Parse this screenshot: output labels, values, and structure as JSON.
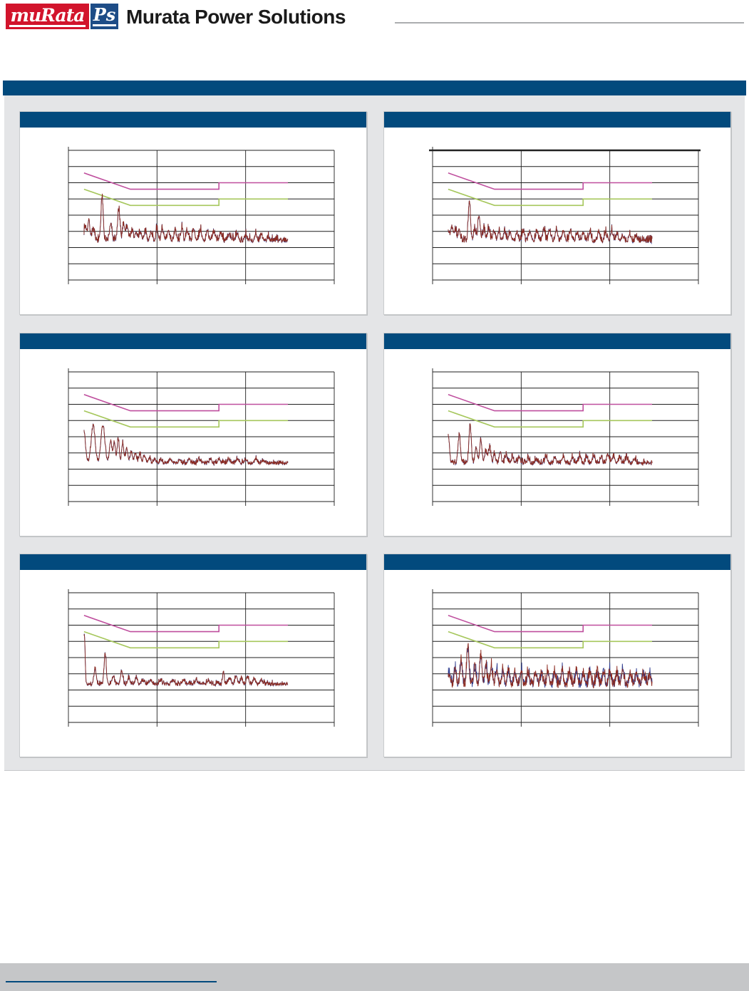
{
  "header": {
    "logo_murata_text": "muRata",
    "logo_ps_text": "Ps",
    "brand_text": "Murata Power Solutions",
    "logo_red_color": "#d2142c",
    "logo_ps_navy_color": "#1e4d87",
    "rule_color": "#abadaf"
  },
  "section": {
    "top_bar_color": "#024a7d",
    "background_color": "#e4e5e7",
    "card_header_color": "#024a7d",
    "footer_band_color": "#c5c6c8",
    "footer_line_color": "#024a7d"
  },
  "chart_data": {
    "type": "line",
    "title": "",
    "shared": {
      "x_axis": {
        "scale": "log",
        "min_mhz": 0.1,
        "max_mhz": 100,
        "gridlines_mhz": [
          0.1,
          1,
          10,
          100
        ]
      },
      "y_axis": {
        "min_db": 0,
        "max_db": 80,
        "grid_step_db": 10
      },
      "grid_color": "#1f1f1f",
      "grid_rows": 8,
      "legend": "none",
      "limits": {
        "quasi_peak": {
          "name": "quasi-peak-limit",
          "color": "#bf4f9e",
          "points_mhz_db": [
            [
              0.15,
              66
            ],
            [
              0.5,
              56
            ],
            [
              5,
              56
            ],
            [
              5,
              60
            ],
            [
              30,
              60
            ]
          ]
        },
        "average": {
          "name": "average-limit",
          "color": "#a6c75c",
          "points_mhz_db": [
            [
              0.15,
              56
            ],
            [
              0.5,
              46
            ],
            [
              5,
              46
            ],
            [
              5,
              50
            ],
            [
              30,
              50
            ]
          ]
        }
      },
      "trace_colors": {
        "qp": "#8c2b21",
        "avg": "#2f3d8f"
      },
      "trace_start_mhz": 0.15,
      "trace_end_mhz": 30
    },
    "charts": [
      {
        "position": "top-left",
        "seed": 7,
        "baseline_db": 24,
        "spike_db": 4.5,
        "jitter_db": 1.1,
        "separation_db": 0.5,
        "separate_traces": false,
        "thick_top_border": false,
        "peaks_mhz_db": [
          [
            0.155,
            33
          ],
          [
            0.17,
            36
          ],
          [
            0.19,
            31
          ],
          [
            0.24,
            50,
            0.013
          ],
          [
            0.3,
            34
          ],
          [
            0.37,
            43
          ],
          [
            0.42,
            34
          ],
          [
            0.46,
            33
          ],
          [
            0.52,
            30
          ],
          [
            0.58,
            29
          ],
          [
            0.65,
            29
          ],
          [
            0.74,
            29
          ],
          [
            0.86,
            29
          ],
          [
            1.0,
            30
          ],
          [
            1.15,
            30
          ],
          [
            1.35,
            30
          ],
          [
            1.6,
            30
          ],
          [
            1.9,
            31
          ],
          [
            2.2,
            30
          ],
          [
            2.6,
            31
          ],
          [
            3.1,
            30
          ],
          [
            3.7,
            30
          ],
          [
            4.4,
            29
          ],
          [
            5.2,
            29
          ],
          [
            6.5,
            28
          ],
          [
            8,
            28
          ],
          [
            10,
            27
          ],
          [
            13,
            28
          ],
          [
            15,
            28
          ],
          [
            18,
            26
          ]
        ]
      },
      {
        "position": "top-right",
        "seed": 13,
        "baseline_db": 24,
        "spike_db": 4,
        "jitter_db": 1.1,
        "separation_db": 0.5,
        "separate_traces": false,
        "thick_top_border": true,
        "peaks_mhz_db": [
          [
            0.15,
            31
          ],
          [
            0.165,
            33
          ],
          [
            0.18,
            31
          ],
          [
            0.2,
            30
          ],
          [
            0.26,
            48,
            0.012
          ],
          [
            0.3,
            31
          ],
          [
            0.335,
            39
          ],
          [
            0.38,
            31
          ],
          [
            0.43,
            32
          ],
          [
            0.49,
            30
          ],
          [
            0.56,
            30
          ],
          [
            0.65,
            30
          ],
          [
            0.75,
            29
          ],
          [
            0.9,
            29
          ],
          [
            1.05,
            30
          ],
          [
            1.25,
            30
          ],
          [
            1.5,
            30
          ],
          [
            1.8,
            31
          ],
          [
            2.1,
            30
          ],
          [
            2.5,
            31
          ],
          [
            3.0,
            30
          ],
          [
            3.6,
            30
          ],
          [
            4.3,
            29
          ],
          [
            5,
            29
          ],
          [
            6,
            29
          ],
          [
            7.5,
            29
          ],
          [
            9,
            29
          ],
          [
            10.5,
            30
          ],
          [
            12,
            28
          ],
          [
            14,
            27
          ],
          [
            17,
            27
          ],
          [
            20,
            26
          ]
        ]
      },
      {
        "position": "mid-left",
        "seed": 21,
        "baseline_db": 23.5,
        "spike_db": 2.2,
        "jitter_db": 0.9,
        "separation_db": 0.4,
        "separate_traces": false,
        "thick_top_border": false,
        "peaks_mhz_db": [
          [
            0.148,
            45,
            0.02
          ],
          [
            0.19,
            47,
            0.022
          ],
          [
            0.245,
            47,
            0.022
          ],
          [
            0.3,
            37,
            0.014
          ],
          [
            0.33,
            36,
            0.012
          ],
          [
            0.365,
            39,
            0.012
          ],
          [
            0.41,
            36,
            0.012
          ],
          [
            0.455,
            33,
            0.012
          ],
          [
            0.51,
            31
          ],
          [
            0.57,
            30
          ],
          [
            0.64,
            29
          ],
          [
            0.72,
            28
          ],
          [
            0.82,
            27
          ],
          [
            0.95,
            26
          ],
          [
            1.1,
            26
          ],
          [
            1.4,
            26
          ],
          [
            1.8,
            26
          ],
          [
            2.3,
            26
          ],
          [
            3,
            26
          ],
          [
            4,
            26
          ],
          [
            5,
            26
          ],
          [
            6.5,
            26
          ],
          [
            8,
            26
          ],
          [
            10,
            26
          ],
          [
            13,
            26
          ],
          [
            16,
            25
          ]
        ]
      },
      {
        "position": "mid-right",
        "seed": 33,
        "baseline_db": 23.5,
        "spike_db": 3,
        "jitter_db": 1.0,
        "separation_db": 0.5,
        "separate_traces": false,
        "thick_top_border": false,
        "peaks_mhz_db": [
          [
            0.15,
            41,
            0.013
          ],
          [
            0.2,
            41,
            0.013
          ],
          [
            0.265,
            47,
            0.013
          ],
          [
            0.31,
            33
          ],
          [
            0.35,
            38
          ],
          [
            0.4,
            31
          ],
          [
            0.44,
            33
          ],
          [
            0.5,
            29
          ],
          [
            0.58,
            30
          ],
          [
            0.68,
            28
          ],
          [
            0.8,
            27
          ],
          [
            0.95,
            27
          ],
          [
            1.2,
            26
          ],
          [
            1.5,
            26
          ],
          [
            1.9,
            27
          ],
          [
            2.4,
            27
          ],
          [
            3,
            27
          ],
          [
            3.8,
            27
          ],
          [
            4.6,
            28
          ],
          [
            5.5,
            27
          ],
          [
            6.6,
            28
          ],
          [
            8,
            27
          ],
          [
            9.5,
            29
          ],
          [
            11,
            28
          ],
          [
            13,
            27
          ],
          [
            15.5,
            27
          ],
          [
            19,
            26
          ]
        ]
      },
      {
        "position": "bottom-left",
        "seed": 41,
        "baseline_db": 23.5,
        "spike_db": 2.2,
        "jitter_db": 0.9,
        "separation_db": 0.4,
        "separate_traces": false,
        "thick_top_border": false,
        "peaks_mhz_db": [
          [
            0.151,
            54,
            0.009
          ],
          [
            0.2,
            33,
            0.012
          ],
          [
            0.26,
            42,
            0.012
          ],
          [
            0.32,
            28
          ],
          [
            0.4,
            31
          ],
          [
            0.48,
            27
          ],
          [
            0.58,
            27
          ],
          [
            0.7,
            26
          ],
          [
            0.85,
            26
          ],
          [
            1.1,
            25.5
          ],
          [
            1.5,
            26
          ],
          [
            2,
            26
          ],
          [
            2.8,
            26
          ],
          [
            3.8,
            26
          ],
          [
            5.6,
            31,
            0.009
          ],
          [
            6.6,
            27
          ],
          [
            7.8,
            28
          ],
          [
            9,
            27
          ],
          [
            10.5,
            28
          ],
          [
            12.5,
            27
          ],
          [
            15,
            26
          ]
        ]
      },
      {
        "position": "bottom-right",
        "seed": 55,
        "baseline_db": 23,
        "spike_db": 5,
        "jitter_db": 2.2,
        "separation_db": 2.2,
        "separate_traces": true,
        "thick_top_border": false,
        "peaks_mhz_db": [
          [
            0.155,
            30
          ],
          [
            0.18,
            32
          ],
          [
            0.21,
            37
          ],
          [
            0.25,
            46,
            0.013
          ],
          [
            0.3,
            33
          ],
          [
            0.35,
            41
          ],
          [
            0.4,
            34
          ],
          [
            0.46,
            34
          ],
          [
            0.53,
            31
          ],
          [
            0.62,
            31
          ],
          [
            0.72,
            31
          ],
          [
            0.85,
            30
          ],
          [
            1.0,
            31
          ],
          [
            1.2,
            30
          ],
          [
            1.45,
            31
          ],
          [
            1.7,
            30
          ],
          [
            2.0,
            31
          ],
          [
            2.4,
            30
          ],
          [
            2.9,
            31
          ],
          [
            3.5,
            30
          ],
          [
            4.2,
            31
          ],
          [
            5,
            30
          ],
          [
            6,
            31
          ],
          [
            7.2,
            30
          ],
          [
            8.5,
            31
          ],
          [
            10,
            31
          ],
          [
            12,
            30
          ],
          [
            14,
            31
          ],
          [
            17,
            30
          ],
          [
            20,
            30
          ],
          [
            24,
            29
          ],
          [
            28,
            29
          ]
        ]
      }
    ]
  }
}
